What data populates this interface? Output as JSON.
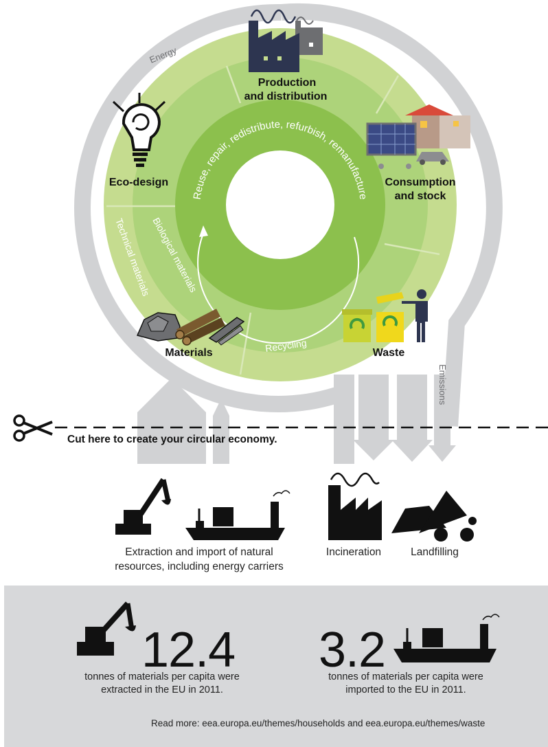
{
  "cycle": {
    "stages": {
      "production": [
        "Production",
        "and distribution"
      ],
      "consumption": [
        "Consumption",
        "and stock"
      ],
      "waste": "Waste",
      "materials": "Materials",
      "ecodesign": "Eco-design"
    },
    "inner_loop": "Reuse, repair, redistribute, refurbish, remanufacture",
    "recycling": "Recycling",
    "biological": "Biological materials",
    "technical": "Technical materials",
    "energy": "Energy",
    "emissions": "Emissions"
  },
  "cut_line": {
    "text": "Cut here to create your circular economy.",
    "icon": "scissors-icon"
  },
  "inputs_outputs": {
    "extraction": [
      "Extraction and import of natural",
      "resources, including energy carriers"
    ],
    "incineration": "Incineration",
    "landfilling": "Landfilling"
  },
  "stats": {
    "extracted": {
      "value": "12.4",
      "caption": [
        "tonnes of materials per capita were",
        "extracted in the EU in 2011."
      ]
    },
    "imported": {
      "value": "3.2",
      "caption": [
        "tonnes of materials per capita were",
        "imported to the EU in 2011."
      ]
    }
  },
  "read_more": "Read more: eea.europa.eu/themes/households and eea.europa.eu/themes/waste",
  "colors": {
    "light_green": "#c5dc8f",
    "mid_green": "#add37a",
    "dark_green": "#8cc04d",
    "grey_arrow": "#d1d2d4",
    "navy": "#2d3550",
    "panel": "#d7d8da"
  }
}
